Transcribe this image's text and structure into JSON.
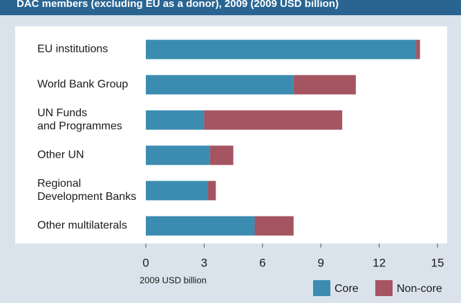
{
  "chart_data": {
    "type": "stacked-bar-horizontal",
    "title": "DAC members (excluding EU as a donor), 2009  (2009 USD billion)",
    "categories": [
      [
        "EU institutions"
      ],
      [
        "World Bank Group"
      ],
      [
        "UN Funds",
        "and Programmes"
      ],
      [
        "Other UN"
      ],
      [
        "Regional",
        "Development Banks"
      ],
      [
        "Other multilaterals"
      ]
    ],
    "series": [
      {
        "name": "Core",
        "color": "#3b8cb0",
        "values": [
          13.9,
          7.6,
          3.0,
          3.3,
          3.2,
          5.6
        ]
      },
      {
        "name": "Non-core",
        "color": "#a55462",
        "values": [
          0.2,
          3.2,
          7.1,
          1.2,
          0.4,
          2.0
        ]
      }
    ],
    "xlabel": "2009 USD billion",
    "xlim": [
      0,
      15
    ],
    "xticks": [
      0,
      3,
      6,
      9,
      12,
      15
    ],
    "grid": false,
    "legend": "bottom-right"
  }
}
